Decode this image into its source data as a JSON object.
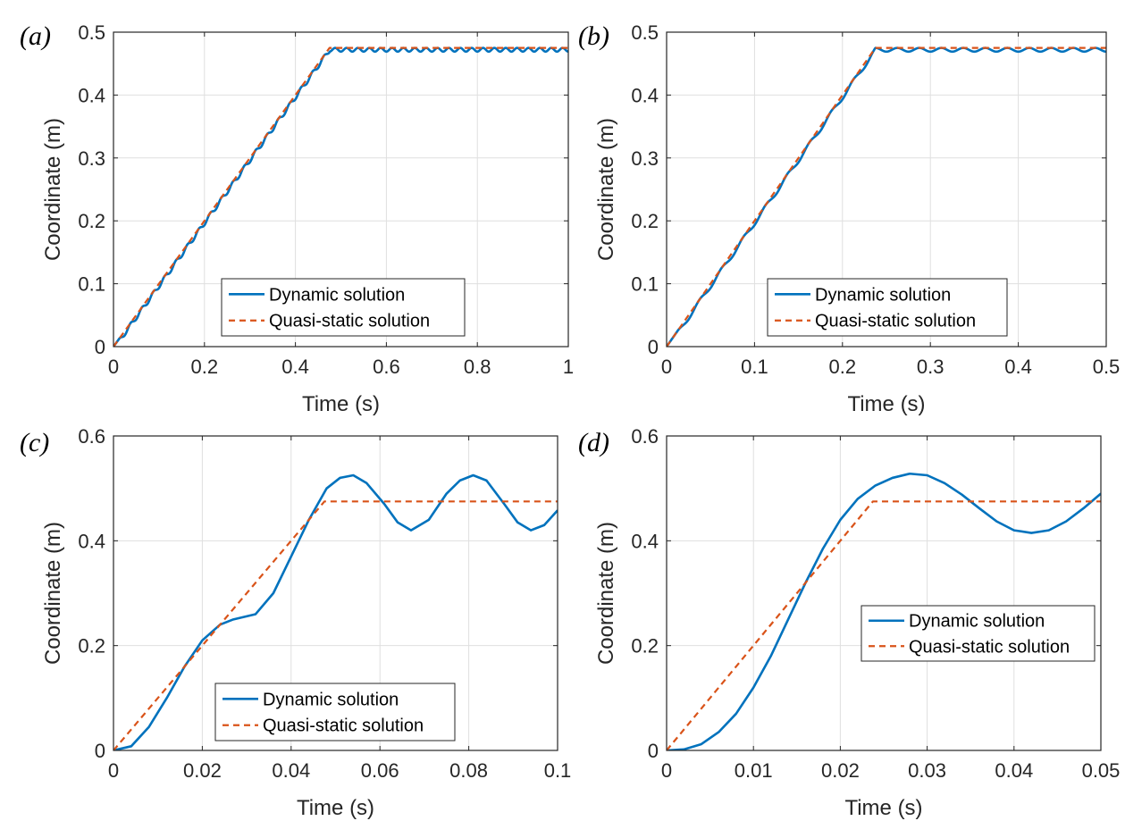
{
  "figure": {
    "series_names": [
      "Dynamic solution",
      "Quasi-static solution"
    ],
    "colors": {
      "dynamic": "#0072BD",
      "quasi_static": "#D95319",
      "grid": "#DFDFDF",
      "axis": "#262626"
    }
  },
  "chart_data": [
    {
      "panel": "a",
      "panel_label": "(a)",
      "type": "line",
      "xlabel": "Time (s)",
      "ylabel": "Coordinate (m)",
      "xlim": [
        0,
        1
      ],
      "ylim": [
        0,
        0.5
      ],
      "xticks": [
        0,
        0.2,
        0.4,
        0.6,
        0.8,
        1
      ],
      "xtick_labels": [
        "0",
        "0.2",
        "0.4",
        "0.6",
        "0.8",
        "1"
      ],
      "yticks": [
        0,
        0.1,
        0.2,
        0.3,
        0.4,
        0.5
      ],
      "ytick_labels": [
        "0",
        "0.1",
        "0.2",
        "0.3",
        "0.4",
        "0.5"
      ],
      "grid": true,
      "legend_position": "lower-center",
      "series": [
        {
          "name": "Dynamic solution",
          "style": "solid",
          "color": "#0072BD",
          "model": {
            "kind": "oscillatory",
            "ramp_time": 0.475,
            "final": 0.475,
            "period": 0.025,
            "amplitude": 0.0035,
            "phase_factor": 0.85
          }
        },
        {
          "name": "Quasi-static solution",
          "style": "dashed",
          "color": "#D95319",
          "x": [
            0,
            0.475,
            1
          ],
          "y": [
            0,
            0.475,
            0.475
          ]
        }
      ]
    },
    {
      "panel": "b",
      "panel_label": "(b)",
      "type": "line",
      "xlabel": "Time (s)",
      "ylabel": "Coordinate (m)",
      "xlim": [
        0,
        0.5
      ],
      "ylim": [
        0,
        0.5
      ],
      "xticks": [
        0,
        0.1,
        0.2,
        0.3,
        0.4,
        0.5
      ],
      "xtick_labels": [
        "0",
        "0.1",
        "0.2",
        "0.3",
        "0.4",
        "0.5"
      ],
      "yticks": [
        0,
        0.1,
        0.2,
        0.3,
        0.4,
        0.5
      ],
      "ytick_labels": [
        "0",
        "0.1",
        "0.2",
        "0.3",
        "0.4",
        "0.5"
      ],
      "grid": true,
      "legend_position": "lower-center",
      "series": [
        {
          "name": "Dynamic solution",
          "style": "solid",
          "color": "#0072BD",
          "model": {
            "kind": "oscillatory",
            "ramp_time": 0.2375,
            "final": 0.475,
            "period": 0.025,
            "amplitude": 0.0035,
            "phase_factor": 0.85
          }
        },
        {
          "name": "Quasi-static solution",
          "style": "dashed",
          "color": "#D95319",
          "x": [
            0,
            0.2375,
            0.5
          ],
          "y": [
            0,
            0.475,
            0.475
          ]
        }
      ]
    },
    {
      "panel": "c",
      "panel_label": "(c)",
      "type": "line",
      "xlabel": "Time (s)",
      "ylabel": "Coordinate (m)",
      "xlim": [
        0,
        0.1
      ],
      "ylim": [
        0,
        0.6
      ],
      "xticks": [
        0,
        0.02,
        0.04,
        0.06,
        0.08,
        0.1
      ],
      "xtick_labels": [
        "0",
        "0.02",
        "0.04",
        "0.06",
        "0.08",
        "0.1"
      ],
      "yticks": [
        0,
        0.2,
        0.4,
        0.6
      ],
      "ytick_labels": [
        "0",
        "0.2",
        "0.4",
        "0.6"
      ],
      "grid": true,
      "legend_position": "lower-center",
      "series": [
        {
          "name": "Dynamic solution",
          "style": "solid",
          "color": "#0072BD",
          "x": [
            0,
            0.004,
            0.008,
            0.012,
            0.016,
            0.02,
            0.024,
            0.027,
            0.032,
            0.036,
            0.04,
            0.044,
            0.048,
            0.051,
            0.054,
            0.057,
            0.061,
            0.064,
            0.067,
            0.071,
            0.075,
            0.078,
            0.081,
            0.084,
            0.088,
            0.091,
            0.094,
            0.097,
            0.1
          ],
          "y": [
            0,
            0.008,
            0.045,
            0.1,
            0.16,
            0.21,
            0.24,
            0.25,
            0.26,
            0.3,
            0.37,
            0.44,
            0.5,
            0.52,
            0.525,
            0.51,
            0.47,
            0.435,
            0.42,
            0.44,
            0.49,
            0.515,
            0.525,
            0.515,
            0.47,
            0.435,
            0.42,
            0.43,
            0.458
          ]
        },
        {
          "name": "Quasi-static solution",
          "style": "dashed",
          "color": "#D95319",
          "x": [
            0,
            0.0475,
            0.1
          ],
          "y": [
            0,
            0.475,
            0.475
          ]
        }
      ]
    },
    {
      "panel": "d",
      "panel_label": "(d)",
      "type": "line",
      "xlabel": "Time (s)",
      "ylabel": "Coordinate (m)",
      "xlim": [
        0,
        0.05
      ],
      "ylim": [
        0,
        0.6
      ],
      "xticks": [
        0,
        0.01,
        0.02,
        0.03,
        0.04,
        0.05
      ],
      "xtick_labels": [
        "0",
        "0.01",
        "0.02",
        "0.03",
        "0.04",
        "0.05"
      ],
      "yticks": [
        0,
        0.2,
        0.4,
        0.6
      ],
      "ytick_labels": [
        "0",
        "0.2",
        "0.4",
        "0.6"
      ],
      "grid": true,
      "legend_position": "right-center",
      "series": [
        {
          "name": "Dynamic solution",
          "style": "solid",
          "color": "#0072BD",
          "x": [
            0,
            0.002,
            0.004,
            0.006,
            0.008,
            0.01,
            0.012,
            0.014,
            0.016,
            0.018,
            0.02,
            0.022,
            0.024,
            0.026,
            0.028,
            0.03,
            0.032,
            0.034,
            0.036,
            0.038,
            0.04,
            0.042,
            0.044,
            0.046,
            0.048,
            0.05
          ],
          "y": [
            0,
            0.002,
            0.012,
            0.035,
            0.07,
            0.12,
            0.18,
            0.25,
            0.32,
            0.385,
            0.44,
            0.48,
            0.505,
            0.52,
            0.528,
            0.525,
            0.51,
            0.488,
            0.462,
            0.437,
            0.42,
            0.415,
            0.42,
            0.437,
            0.462,
            0.49
          ]
        },
        {
          "name": "Quasi-static solution",
          "style": "dashed",
          "color": "#D95319",
          "x": [
            0,
            0.02375,
            0.05
          ],
          "y": [
            0,
            0.475,
            0.475
          ]
        }
      ]
    }
  ]
}
